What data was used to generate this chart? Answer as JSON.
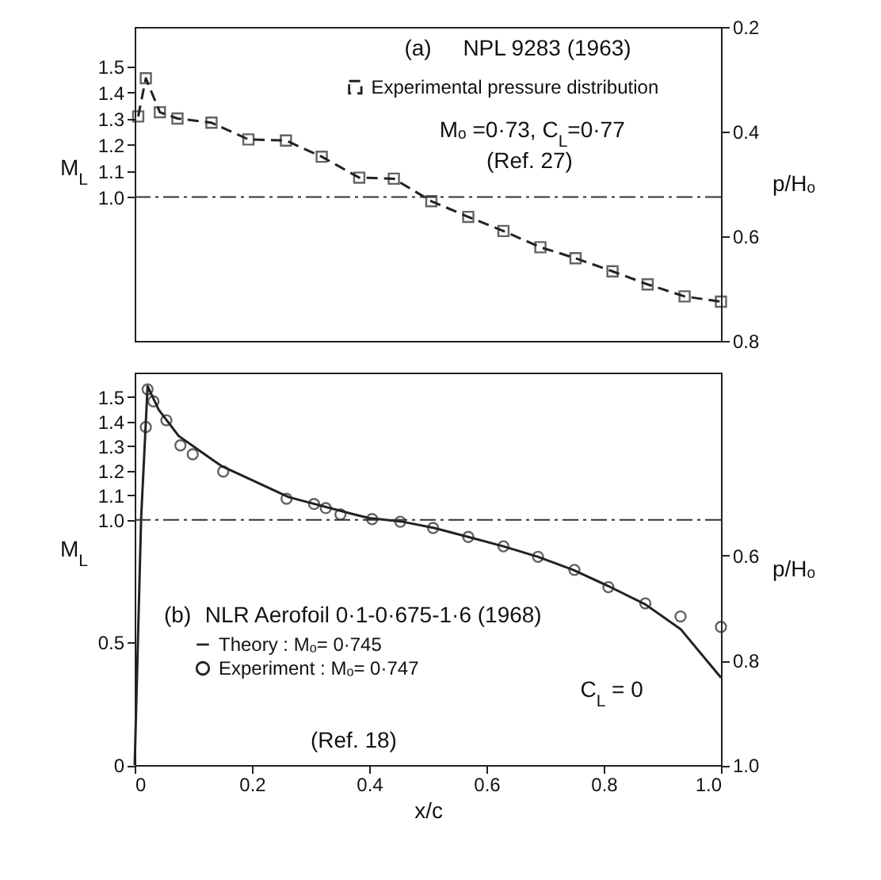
{
  "chart_data": [
    {
      "type": "line",
      "annotations": [
        "(a)",
        "NPL 9283 (1963)",
        "Mₒ =0·73, C$_{L}$=0·77",
        "(Ref. 27)"
      ],
      "ylabel": "M$_{L}$",
      "y2label": "p/Hₒ",
      "xlim": [
        0,
        1
      ],
      "ylim": [
        0.45,
        1.65
      ],
      "yticks": [
        {
          "value": 1,
          "label": "1.0"
        },
        1.1,
        1.2,
        1.3,
        1.4,
        1.5
      ],
      "y2lim": [
        0.8,
        0.2
      ],
      "y2ticks": [
        0.2,
        0.4,
        0.6,
        0.8
      ],
      "tick_labels": "y",
      "legend": "top right",
      "marker": "square",
      "line_style": "dashed",
      "series": [
        {
          "name": "Experimental pressure distribution",
          "axis": "y2",
          "color": "#222222",
          "x": [
            0.006,
            0.019,
            0.043,
            0.073,
            0.131,
            0.194,
            0.258,
            0.319,
            0.383,
            0.442,
            0.506,
            0.569,
            0.629,
            0.692,
            0.752,
            0.815,
            0.875,
            0.938,
            1.0
          ],
          "values": [
            0.371,
            0.298,
            0.363,
            0.375,
            0.383,
            0.415,
            0.417,
            0.448,
            0.488,
            0.49,
            0.533,
            0.563,
            0.59,
            0.621,
            0.642,
            0.667,
            0.692,
            0.715,
            0.725
          ]
        }
      ],
      "ref_lines": [
        {
          "axis": "y",
          "value": 1,
          "line_style": "dashdot"
        }
      ]
    },
    {
      "type": "line",
      "annotations": [
        "(b)",
        "NLR Aerofoil 0·1-0·675-1·6 (1968)",
        "C$_{L}$ = 0",
        "(Ref. 18)"
      ],
      "xlabel": "x/c",
      "ylabel": "M$_{L}$",
      "y2label": "p/Hₒ",
      "xlim": [
        0,
        1
      ],
      "xticks": [
        0,
        0.2,
        0.4,
        0.6,
        0.8,
        {
          "value": 1,
          "label": "1.0"
        }
      ],
      "ylim": [
        0,
        1.6
      ],
      "yticks": [
        0,
        0.5,
        {
          "value": 1,
          "label": "1.0"
        },
        1.1,
        1.2,
        1.3,
        1.4,
        1.5
      ],
      "y2lim": [
        1.0,
        0.25
      ],
      "y2ticks": [
        0.6,
        0.8,
        {
          "value": 1,
          "label": "1.0"
        }
      ],
      "legend": "bottom left",
      "line_style": "solid",
      "series": [
        {
          "name": "Theory : Mₒ= 0·745",
          "axis": "y2",
          "color": "#222222",
          "x": [
            0,
            0.011,
            0.022,
            0.041,
            0.075,
            0.127,
            0.149,
            0.263,
            0.371,
            0.4,
            0.457,
            0.511,
            0.569,
            0.629,
            0.688,
            0.748,
            0.808,
            0.871,
            0.931,
            1.0
          ],
          "values": [
            1.0,
            0.528,
            0.276,
            0.321,
            0.371,
            0.412,
            0.429,
            0.488,
            0.52,
            0.528,
            0.535,
            0.547,
            0.564,
            0.582,
            0.602,
            0.627,
            0.658,
            0.693,
            0.74,
            0.833
          ]
        },
        {
          "name": "Experiment : Mₒ= 0·747",
          "type": "scatter",
          "axis": "y2",
          "color": "#222222",
          "x": [
            0.019,
            0.022,
            0.032,
            0.054,
            0.078,
            0.099,
            0.151,
            0.259,
            0.306,
            0.326,
            0.351,
            0.405,
            0.453,
            0.509,
            0.569,
            0.629,
            0.688,
            0.75,
            0.808,
            0.871,
            0.931,
            1.0
          ],
          "values": [
            0.354,
            0.282,
            0.305,
            0.341,
            0.389,
            0.406,
            0.439,
            0.491,
            0.501,
            0.509,
            0.521,
            0.53,
            0.535,
            0.547,
            0.564,
            0.582,
            0.602,
            0.627,
            0.66,
            0.691,
            0.716,
            0.736
          ]
        }
      ],
      "ref_lines": [
        {
          "axis": "y",
          "value": 1,
          "line_style": "dashdot"
        }
      ]
    }
  ]
}
